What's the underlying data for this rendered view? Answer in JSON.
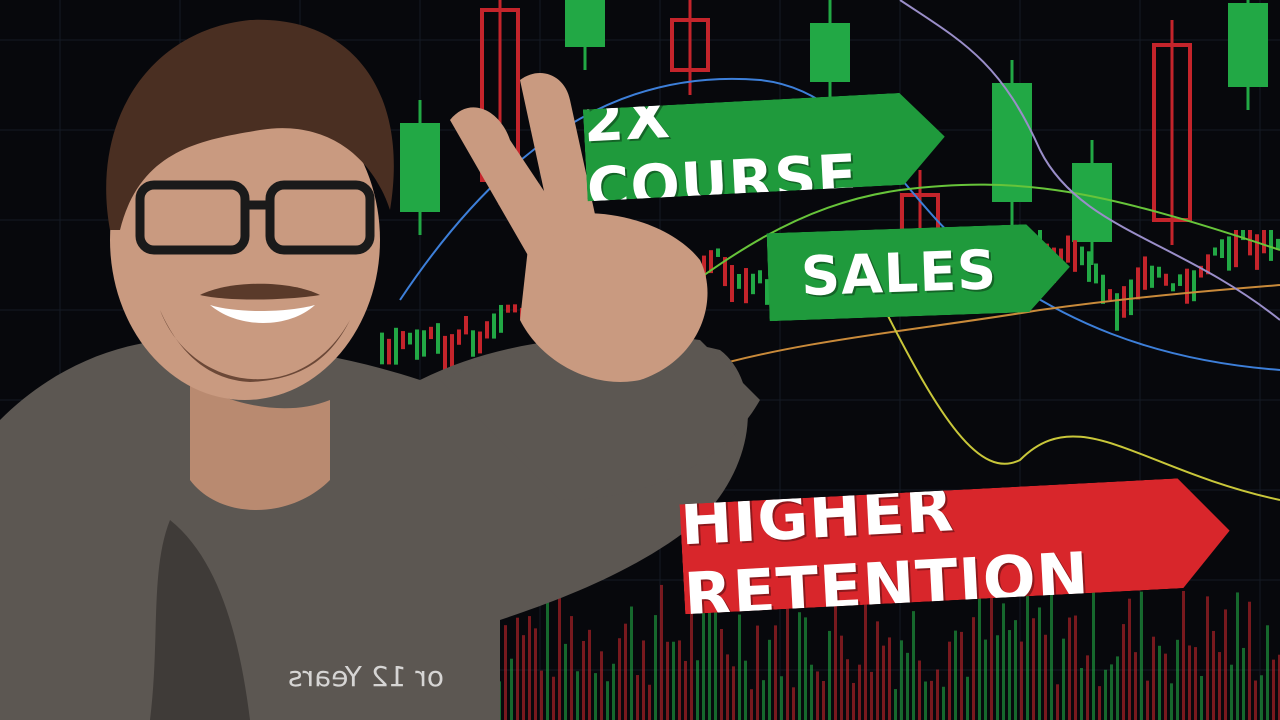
{
  "banners": {
    "line1": "2X COURSE",
    "line2": "SALES",
    "line3": "HIGHER RETENTION"
  },
  "caption": "or 12 Years",
  "colors": {
    "background": "#07080c",
    "green_banner": "#1f9a3c",
    "red_banner": "#d8262b",
    "candle_up": "#22a845",
    "candle_down": "#c4242b"
  },
  "scene": {
    "person": "smiling man with glasses making a peace sign",
    "backdrop": "candlestick trading chart with moving-average lines and volume bars"
  }
}
